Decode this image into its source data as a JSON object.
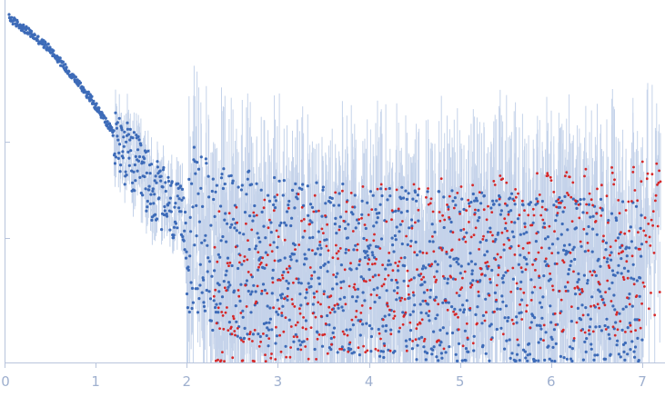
{
  "chart_data": {
    "type": "scatter",
    "title": "",
    "xlabel": "",
    "ylabel": "",
    "xlim": [
      0,
      7.25
    ],
    "y_scale": "log",
    "ylim": [
      0.0005,
      3.0
    ],
    "y_ticks": [
      0.01,
      0.1
    ],
    "x_ticks": [
      {
        "value": 0,
        "label": "0"
      },
      {
        "value": 1,
        "label": "1"
      },
      {
        "value": 2,
        "label": "2"
      },
      {
        "value": 3,
        "label": "3"
      },
      {
        "value": 4,
        "label": "4"
      },
      {
        "value": 5,
        "label": "5"
      },
      {
        "value": 6,
        "label": "6"
      },
      {
        "value": 7,
        "label": "7"
      }
    ],
    "grid": false,
    "legend": "none",
    "colors": {
      "points_primary": "#3d6bb8",
      "points_secondary": "#d62728",
      "error_bars": "#c5d3ea",
      "axis": "#b8c4dc",
      "tick_labels": "#9fb0cf"
    },
    "series": [
      {
        "color_key": "points_primary",
        "x": [
          0.05,
          0.2,
          0.35,
          0.5,
          0.65,
          0.8,
          0.95,
          1.1,
          1.25,
          1.4,
          1.55,
          1.7,
          1.85,
          2.0,
          2.2,
          2.4,
          2.6,
          2.8,
          3.0,
          3.5,
          4.0,
          4.5,
          5.0,
          5.5,
          6.0,
          6.5,
          7.0
        ],
        "y": [
          1.95,
          1.55,
          1.2,
          0.92,
          0.62,
          0.42,
          0.28,
          0.17,
          0.1,
          0.062,
          0.04,
          0.027,
          0.019,
          0.013,
          0.009,
          0.0075,
          0.0065,
          0.006,
          0.0055,
          0.005,
          0.0045,
          0.0042,
          0.004,
          0.0038,
          0.0035,
          0.0033,
          0.003
        ]
      },
      {
        "color_key": "points_secondary",
        "x": [
          2.3,
          2.8,
          3.3,
          3.8,
          4.3,
          4.8,
          5.3,
          5.8,
          6.3,
          6.8,
          7.2
        ],
        "y": [
          0.003,
          0.0035,
          0.004,
          0.0045,
          0.0048,
          0.0052,
          0.0058,
          0.0062,
          0.0065,
          0.0078,
          0.01
        ]
      }
    ]
  }
}
